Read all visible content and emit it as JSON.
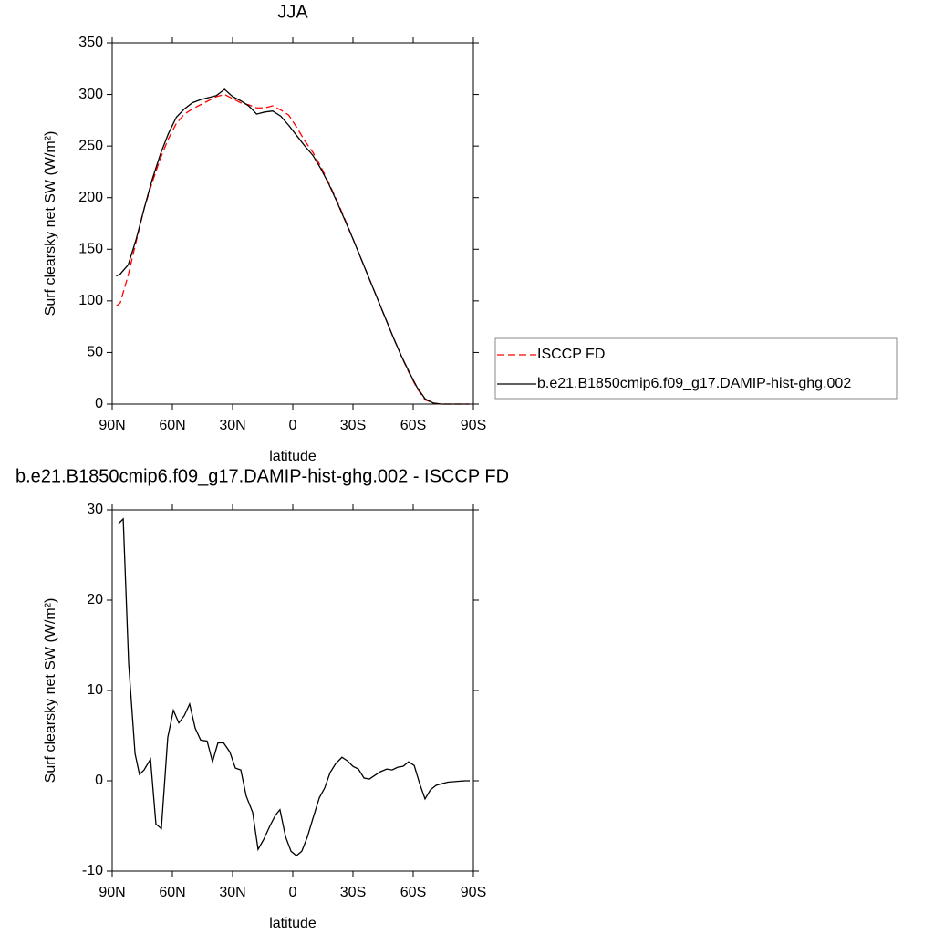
{
  "chart_data": [
    {
      "type": "line",
      "title": "JJA",
      "xlabel": "latitude",
      "ylabel": "Surf clearsky net SW (W/m²)",
      "x": [
        88,
        86,
        82,
        78,
        74,
        70,
        66,
        62,
        58,
        54,
        50,
        46,
        42,
        38,
        34,
        30,
        26,
        22,
        18,
        14,
        10,
        6,
        2,
        -2,
        -6,
        -10,
        -14,
        -18,
        -22,
        -26,
        -30,
        -34,
        -38,
        -42,
        -46,
        -50,
        -54,
        -58,
        -62,
        -66,
        -70,
        -74,
        -78,
        -82,
        -86,
        -88
      ],
      "series": [
        {
          "name": "ISCCP FD",
          "color": "#ff0000",
          "linestyle": "dashed",
          "values": [
            95,
            98,
            125,
            158,
            190,
            215,
            238,
            257,
            272,
            281,
            286,
            290,
            294,
            298,
            300,
            296,
            292,
            290,
            287,
            287,
            289,
            285,
            280,
            268,
            255,
            244,
            230,
            214,
            197,
            179,
            160,
            141,
            122,
            103,
            84,
            65,
            47,
            30,
            15,
            4,
            1,
            0,
            0,
            0,
            0,
            0
          ]
        },
        {
          "name": "b.e21.B1850cmip6.f09_g17.DAMIP-hist-ghg.002",
          "color": "#000000",
          "linestyle": "solid",
          "values": [
            124,
            126,
            135,
            160,
            190,
            218,
            242,
            262,
            278,
            286,
            292,
            295,
            297,
            299,
            305,
            298,
            294,
            289,
            281,
            283,
            284,
            279,
            270,
            260,
            250,
            241,
            228,
            213,
            196,
            178,
            160,
            141,
            122,
            103,
            84,
            65,
            47,
            31,
            16,
            5,
            1,
            0,
            0,
            0,
            0,
            0
          ]
        }
      ],
      "xlim": [
        90,
        -90
      ],
      "xticks": [
        {
          "value": 90,
          "label": "90N"
        },
        {
          "value": 60,
          "label": "60N"
        },
        {
          "value": 30,
          "label": "30N"
        },
        0,
        {
          "value": -30,
          "label": "30S"
        },
        {
          "value": -60,
          "label": "60S"
        },
        {
          "value": -90,
          "label": "90S"
        }
      ],
      "ylim": [
        0,
        350
      ],
      "yticks": [
        0,
        50,
        100,
        150,
        200,
        250,
        300,
        350
      ],
      "legend": "outside-right"
    },
    {
      "type": "line",
      "title": "b.e21.B1850cmip6.f09_g17.DAMIP-hist-ghg.002 - ISCCP FD",
      "xlabel": "latitude",
      "ylabel": "Surf clearsky net SW (W/m²)",
      "x": [
        86.8,
        84.5,
        81.8,
        78.6,
        76.4,
        74.1,
        70.9,
        68.2,
        65.5,
        62.3,
        59.5,
        56.8,
        54.1,
        51.4,
        48.6,
        45.9,
        42.7,
        40,
        37.3,
        34.5,
        31.4,
        28.6,
        25.9,
        23.2,
        20,
        17.3,
        14.5,
        11.4,
        8.6,
        6.4,
        3.6,
        0.9,
        -1.8,
        -4.5,
        -7.3,
        -10,
        -13.2,
        -15.9,
        -18.6,
        -21.4,
        -24.5,
        -27.3,
        -30,
        -32.7,
        -35.5,
        -38.2,
        -40.9,
        -43.6,
        -46.8,
        -49.5,
        -52.3,
        -55,
        -57.7,
        -60.5,
        -63.2,
        -65.9,
        -68.6,
        -71.4,
        -74.5,
        -77.3,
        -80,
        -82.7,
        -85.9,
        -88.2
      ],
      "series": [
        {
          "color": "#000000",
          "linestyle": "solid",
          "values": [
            28.5,
            29,
            13,
            3,
            0.7,
            1.2,
            2.4,
            -4.8,
            -5.3,
            4.8,
            7.8,
            6.4,
            7.2,
            8.5,
            5.8,
            4.5,
            4.4,
            2.1,
            4.2,
            4.2,
            3.2,
            1.4,
            1.2,
            -1.7,
            -3.5,
            -7.6,
            -6.5,
            -5,
            -3.8,
            -3.2,
            -6.2,
            -7.8,
            -8.3,
            -7.8,
            -6.2,
            -4.2,
            -1.9,
            -0.8,
            0.9,
            1.9,
            2.6,
            2.2,
            1.6,
            1.3,
            0.3,
            0.2,
            0.6,
            1,
            1.3,
            1.2,
            1.5,
            1.6,
            2.1,
            1.7,
            -0.3,
            -2,
            -1,
            -0.5,
            -0.3,
            -0.15,
            -0.1,
            -0.05,
            0,
            0
          ]
        }
      ],
      "xlim": [
        90,
        -90
      ],
      "xticks": [
        {
          "value": 90,
          "label": "90N"
        },
        {
          "value": 60,
          "label": "60N"
        },
        {
          "value": 30,
          "label": "30N"
        },
        0,
        {
          "value": -30,
          "label": "30S"
        },
        {
          "value": -60,
          "label": "60S"
        },
        {
          "value": -90,
          "label": "90S"
        }
      ],
      "ylim": [
        -10,
        30
      ],
      "yticks": [
        -10,
        0,
        10,
        20,
        30
      ]
    }
  ]
}
